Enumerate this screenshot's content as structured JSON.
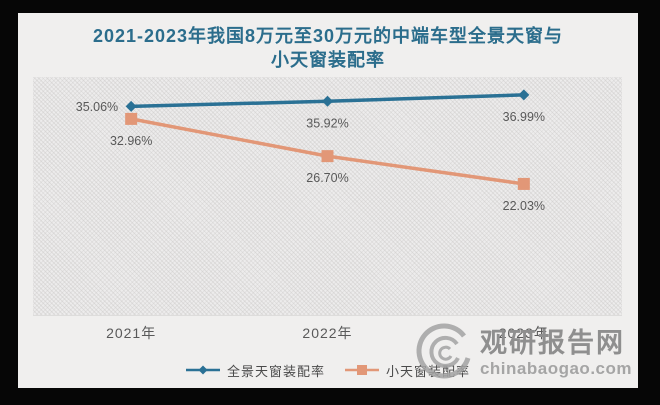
{
  "title": {
    "line1": "2021-2023年我国8万元至30万元的中端车型全景天窗与",
    "line2": "小天窗装配率"
  },
  "chart_data": {
    "type": "line",
    "title": "2021-2023年我国8万元至30万元的中端车型全景天窗与小天窗装配率",
    "categories": [
      "2021年",
      "2022年",
      "2023年"
    ],
    "series": [
      {
        "name": "全景天窗装配率",
        "values": [
          35.06,
          35.92,
          36.99
        ],
        "labels": [
          "35.06%",
          "35.92%",
          "36.99%"
        ],
        "color": "#2a7195",
        "marker": "diamond"
      },
      {
        "name": "小天窗装配率",
        "values": [
          32.96,
          26.7,
          22.03
        ],
        "labels": [
          "32.96%",
          "26.70%",
          "22.03%"
        ],
        "color": "#e29777",
        "marker": "square"
      }
    ],
    "ylim": [
      0,
      40
    ],
    "grid": false,
    "legend_position": "bottom",
    "data_label_color": "#595959",
    "axis_label_color": "#595959"
  },
  "watermark": {
    "site_name": "观研报告网",
    "site_url": "chinabaogao.com",
    "logo": "swirl-logo",
    "color": "#9a9a9a"
  }
}
